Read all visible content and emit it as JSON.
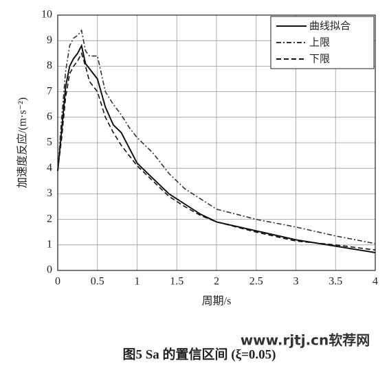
{
  "chart_data": {
    "type": "line",
    "xlabel": "周期/s",
    "ylabel": "加速度反应/(m·s⁻²)",
    "caption": "图5  Sa 的置信区间 (ξ=0.05)",
    "watermark": "www.rjtj.cn软荐网",
    "x": [
      0,
      0.05,
      0.1,
      0.15,
      0.2,
      0.25,
      0.3,
      0.35,
      0.4,
      0.5,
      0.6,
      0.7,
      0.8,
      0.9,
      1.0,
      1.2,
      1.4,
      1.6,
      1.8,
      2.0,
      2.5,
      3.0,
      3.5,
      4.0
    ],
    "series": [
      {
        "name": "曲线拟合",
        "color": "#111111",
        "style": "solid",
        "values": [
          3.9,
          5.5,
          7.2,
          8.0,
          8.3,
          8.5,
          8.8,
          8.1,
          7.9,
          7.5,
          6.4,
          5.7,
          5.4,
          4.8,
          4.2,
          3.6,
          3.0,
          2.6,
          2.2,
          1.9,
          1.55,
          1.2,
          0.95,
          0.7
        ]
      },
      {
        "name": "上限",
        "color": "#333333",
        "style": "dashdot",
        "values": [
          3.9,
          6.0,
          7.8,
          8.8,
          9.1,
          9.2,
          9.4,
          8.6,
          8.4,
          8.4,
          7.0,
          6.5,
          6.1,
          5.6,
          5.2,
          4.6,
          3.8,
          3.2,
          2.8,
          2.4,
          2.0,
          1.7,
          1.35,
          1.05
        ]
      },
      {
        "name": "下限",
        "color": "#111111",
        "style": "dashed",
        "values": [
          3.9,
          5.2,
          6.8,
          7.7,
          8.0,
          8.2,
          8.5,
          8.0,
          7.4,
          7.0,
          6.0,
          5.4,
          4.9,
          4.5,
          4.1,
          3.5,
          2.9,
          2.5,
          2.15,
          1.9,
          1.5,
          1.15,
          1.0,
          0.8
        ]
      }
    ],
    "xlim": [
      0,
      4
    ],
    "xticks": [
      0,
      0.5,
      1,
      1.5,
      2,
      2.5,
      3,
      3.5,
      4
    ],
    "ylim": [
      0,
      10
    ],
    "yticks": [
      0,
      1,
      2,
      3,
      4,
      5,
      6,
      7,
      8,
      9,
      10
    ],
    "grid": true,
    "legend": "upper right"
  }
}
